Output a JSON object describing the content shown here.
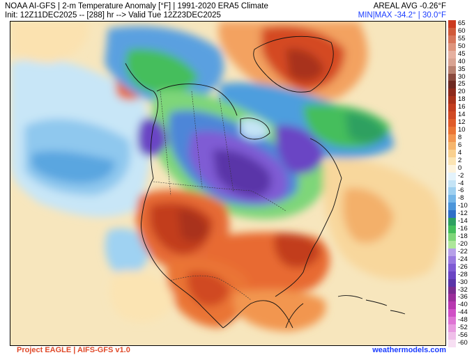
{
  "header": {
    "title": "NOAA AI-GFS | 2-m Temperature Anomaly [°F] | 1991-2020 ERA5 Climate",
    "init": "Init: 12Z11DEC2025 -- [288] hr --> Valid Tue 12Z23DEC2025",
    "areal_avg": "AREAL AVG -0.26°F",
    "minmax": "MIN|MAX -34.2° | 30.0°F"
  },
  "colorbar": {
    "levels": [
      {
        "label": "65",
        "color": "#cc3a1f"
      },
      {
        "label": "60",
        "color": "#d05a3a"
      },
      {
        "label": "55",
        "color": "#d7765a"
      },
      {
        "label": "50",
        "color": "#de947c"
      },
      {
        "label": "45",
        "color": "#e6b0a0"
      },
      {
        "label": "40",
        "color": "#d9a392"
      },
      {
        "label": "35",
        "color": "#b8806f"
      },
      {
        "label": "30",
        "color": "#8a4a3e"
      },
      {
        "label": "25",
        "color": "#6e2a22"
      },
      {
        "label": "20",
        "color": "#8e2a1c"
      },
      {
        "label": "18",
        "color": "#a9321a"
      },
      {
        "label": "16",
        "color": "#c23d1e"
      },
      {
        "label": "14",
        "color": "#d04a24"
      },
      {
        "label": "12",
        "color": "#e05c2a"
      },
      {
        "label": "10",
        "color": "#ea7535"
      },
      {
        "label": "8",
        "color": "#f29650"
      },
      {
        "label": "6",
        "color": "#f6b56c"
      },
      {
        "label": "4",
        "color": "#f9d08e"
      },
      {
        "label": "2",
        "color": "#fbe4b3"
      },
      {
        "label": "0",
        "color": "#fdf3dc"
      },
      {
        "label": "-2",
        "color": "#e4f3fb"
      },
      {
        "label": "-4",
        "color": "#c4e4f6"
      },
      {
        "label": "-6",
        "color": "#9ed0f0"
      },
      {
        "label": "-8",
        "color": "#74b6e8"
      },
      {
        "label": "-10",
        "color": "#4b95da"
      },
      {
        "label": "-12",
        "color": "#2f6fc8"
      },
      {
        "label": "-14",
        "color": "#2ea060"
      },
      {
        "label": "-16",
        "color": "#44be5c"
      },
      {
        "label": "-18",
        "color": "#7ed679"
      },
      {
        "label": "-20",
        "color": "#aee79b"
      },
      {
        "label": "-22",
        "color": "#b6a0e8"
      },
      {
        "label": "-24",
        "color": "#9a7ae0"
      },
      {
        "label": "-26",
        "color": "#7f5bd4"
      },
      {
        "label": "-28",
        "color": "#6a44c4"
      },
      {
        "label": "-30",
        "color": "#5a35a8"
      },
      {
        "label": "-32",
        "color": "#7a2d8e"
      },
      {
        "label": "-36",
        "color": "#9a2f9a"
      },
      {
        "label": "-40",
        "color": "#b838b0"
      },
      {
        "label": "-44",
        "color": "#d04fc6"
      },
      {
        "label": "-48",
        "color": "#de74d4"
      },
      {
        "label": "-52",
        "color": "#e89be0"
      },
      {
        "label": "-56",
        "color": "#efbfe9"
      },
      {
        "label": "-60",
        "color": "#f7dff3"
      }
    ]
  },
  "footer": {
    "left": "Project EAGLE | AIFS-GFS v1.0",
    "right": "weathermodels.com"
  }
}
